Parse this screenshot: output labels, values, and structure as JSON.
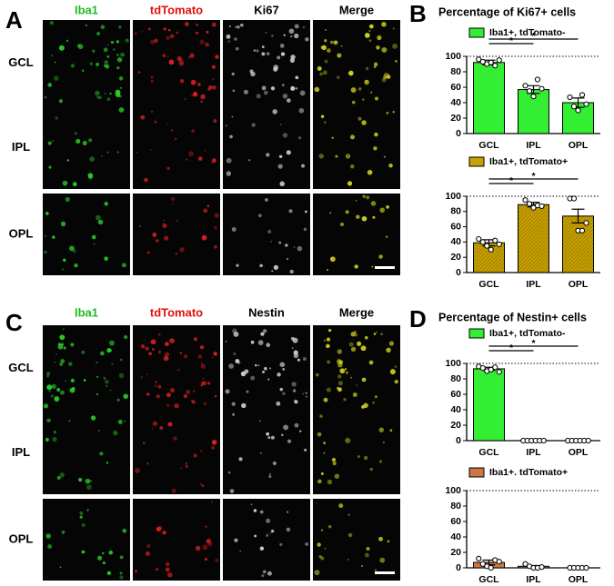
{
  "panels": [
    {
      "letter": "A",
      "columns": [
        {
          "label": "Iba1",
          "color": "#22bb22"
        },
        {
          "label": "tdTomato",
          "color": "#e01010"
        },
        {
          "label": "Ki67",
          "color": "#000000"
        },
        {
          "label": "Merge",
          "color": "#000000"
        }
      ],
      "rows": [
        "GCL",
        "IPL",
        "OPL"
      ]
    },
    {
      "letter": "C",
      "columns": [
        {
          "label": "Iba1",
          "color": "#22bb22"
        },
        {
          "label": "tdTomato",
          "color": "#e01010"
        },
        {
          "label": "Nestin",
          "color": "#000000"
        },
        {
          "label": "Merge",
          "color": "#000000"
        }
      ],
      "rows": [
        "GCL",
        "IPL",
        "OPL"
      ]
    }
  ],
  "chart_panels": [
    {
      "letter": "B",
      "title": "Percentage of Ki67+ cells"
    },
    {
      "letter": "D",
      "title": "Percentage of Nestin+ cells"
    }
  ],
  "chart_data": [
    {
      "type": "bar",
      "categories": [
        "GCL",
        "IPL",
        "OPL"
      ],
      "hatch": false,
      "series": [
        {
          "name": "Iba1+, tdTomato-",
          "color": "#33ee33",
          "values": [
            92,
            57,
            40
          ],
          "errors": [
            3,
            5,
            6
          ],
          "points": [
            [
              96,
              93,
              90,
              92,
              88,
              95
            ],
            [
              62,
              55,
              48,
              70,
              58
            ],
            [
              47,
              35,
              30,
              50,
              38
            ]
          ]
        }
      ],
      "annotations": [
        "*",
        "*"
      ],
      "ylim": [
        0,
        100
      ],
      "yticks": [
        0,
        20,
        40,
        60,
        80,
        100
      ]
    },
    {
      "type": "bar",
      "categories": [
        "GCL",
        "IPL",
        "OPL"
      ],
      "hatch": true,
      "series": [
        {
          "name": "Iba1+, tdTomato+",
          "color": "#c8a000",
          "values": [
            39,
            89,
            74
          ],
          "errors": [
            4,
            3,
            9
          ],
          "points": [
            [
              44,
              40,
              35,
              30,
              42,
              37
            ],
            [
              95,
              90,
              85,
              88,
              87
            ],
            [
              97,
              97,
              55,
              55,
              65
            ]
          ]
        }
      ],
      "annotations": [
        "*",
        "*"
      ],
      "ylim": [
        0,
        100
      ],
      "yticks": [
        0,
        20,
        40,
        60,
        80,
        100
      ]
    },
    {
      "type": "bar",
      "categories": [
        "GCL",
        "IPL",
        "OPL"
      ],
      "hatch": false,
      "series": [
        {
          "name": "Iba1+, tdTomato-",
          "color": "#33ee33",
          "values": [
            93,
            0,
            0
          ],
          "errors": [
            2,
            0,
            0
          ],
          "points": [
            [
              96,
              94,
              90,
              92,
              95,
              89
            ],
            [
              0,
              0,
              0,
              0,
              0,
              0
            ],
            [
              0,
              0,
              0,
              0,
              0,
              0
            ]
          ]
        }
      ],
      "annotations": [
        "*",
        "*"
      ],
      "ylim": [
        0,
        100
      ],
      "yticks": [
        0,
        20,
        40,
        60,
        80,
        100
      ]
    },
    {
      "type": "bar",
      "categories": [
        "GCL",
        "IPL",
        "OPL"
      ],
      "hatch": false,
      "series": [
        {
          "name": "Iba1+. tdTomato+",
          "color": "#c87840",
          "values": [
            7,
            2,
            0
          ],
          "errors": [
            3,
            1,
            0
          ],
          "points": [
            [
              12,
              5,
              2,
              0,
              10,
              8
            ],
            [
              5,
              2,
              0,
              0,
              1
            ],
            [
              0,
              0,
              0,
              0,
              0
            ]
          ]
        }
      ],
      "annotations": [],
      "ylim": [
        0,
        100
      ],
      "yticks": [
        0,
        20,
        40,
        60,
        80,
        100
      ]
    }
  ]
}
